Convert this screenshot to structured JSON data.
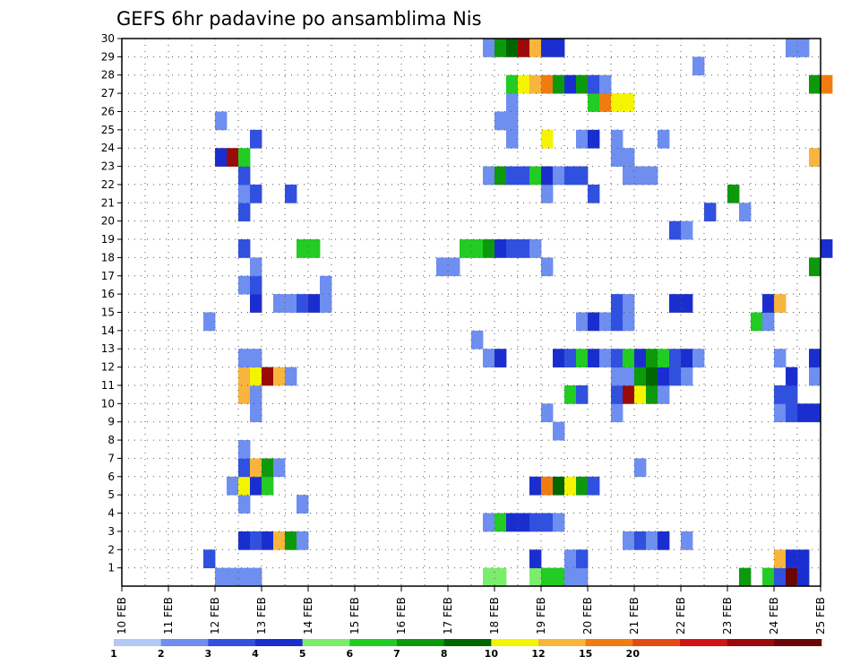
{
  "chart_data": {
    "type": "heatmap",
    "title": "GEFS 6hr padavine po ansamblima Nis",
    "xlabel": "",
    "ylabel": "",
    "x_tick_labels": [
      "10 FEB",
      "11 FEB",
      "12 FEB",
      "13 FEB",
      "14 FEB",
      "15 FEB",
      "16 FEB",
      "17 FEB",
      "18 FEB",
      "19 FEB",
      "20 FEB",
      "21 FEB",
      "22 FEB",
      "23 FEB",
      "24 FEB",
      "25 FEB"
    ],
    "y_tick_labels": [
      "1",
      "2",
      "3",
      "4",
      "5",
      "6",
      "7",
      "8",
      "9",
      "10",
      "11",
      "12",
      "13",
      "14",
      "15",
      "16",
      "17",
      "18",
      "19",
      "20",
      "21",
      "22",
      "23",
      "24",
      "25",
      "26",
      "27",
      "28",
      "29",
      "30"
    ],
    "x_range_days": [
      10,
      25
    ],
    "y_range_members": [
      0,
      30
    ],
    "time_step_hours": 6,
    "grid": true,
    "colorbar": {
      "labels": [
        "1",
        "2",
        "3",
        "4",
        "5",
        "6",
        "7",
        "8",
        "10",
        "12",
        "15",
        "20"
      ],
      "colors": [
        "#b4c8f4",
        "#6e8ef0",
        "#3050e0",
        "#1a2ed0",
        "#7aee6c",
        "#22cc22",
        "#0c9a0c",
        "#006600",
        "#f4f400",
        "#f8b43c",
        "#f07c10",
        "#e64a14",
        "#d01414",
        "#9a0a0a",
        "#6a0606"
      ]
    },
    "cells": [
      {
        "m": 0,
        "t": "12 00",
        "c": 1
      },
      {
        "m": 0,
        "t": "12 06",
        "c": 1
      },
      {
        "m": 0,
        "t": "12 12",
        "c": 1
      },
      {
        "m": 0,
        "t": "12 18",
        "c": 1
      },
      {
        "m": 0,
        "t": "17 18",
        "c": 4
      },
      {
        "m": 0,
        "t": "18 00",
        "c": 4
      },
      {
        "m": 0,
        "t": "18 18",
        "c": 4
      },
      {
        "m": 0,
        "t": "19 00",
        "c": 5
      },
      {
        "m": 0,
        "t": "19 06",
        "c": 5
      },
      {
        "m": 0,
        "t": "19 12",
        "c": 1
      },
      {
        "m": 0,
        "t": "19 18",
        "c": 1
      },
      {
        "m": 0,
        "t": "23 06",
        "c": 6
      },
      {
        "m": 0,
        "t": "23 18",
        "c": 5
      },
      {
        "m": 0,
        "t": "24 00",
        "c": 2
      },
      {
        "m": 0,
        "t": "24 06",
        "c": 14
      },
      {
        "m": 0,
        "t": "24 12",
        "c": 3
      },
      {
        "m": 1,
        "t": "11 18",
        "c": 2
      },
      {
        "m": 1,
        "t": "18 18",
        "c": 3
      },
      {
        "m": 1,
        "t": "19 12",
        "c": 1
      },
      {
        "m": 1,
        "t": "19 18",
        "c": 2
      },
      {
        "m": 1,
        "t": "24 00",
        "c": 9
      },
      {
        "m": 1,
        "t": "24 06",
        "c": 3
      },
      {
        "m": 1,
        "t": "24 12",
        "c": 3
      },
      {
        "m": 2,
        "t": "12 12",
        "c": 3
      },
      {
        "m": 2,
        "t": "12 18",
        "c": 2
      },
      {
        "m": 2,
        "t": "13 00",
        "c": 3
      },
      {
        "m": 2,
        "t": "13 06",
        "c": 9
      },
      {
        "m": 2,
        "t": "13 12",
        "c": 6
      },
      {
        "m": 2,
        "t": "13 18",
        "c": 1
      },
      {
        "m": 2,
        "t": "20 18",
        "c": 1
      },
      {
        "m": 2,
        "t": "21 00",
        "c": 2
      },
      {
        "m": 2,
        "t": "21 06",
        "c": 1
      },
      {
        "m": 2,
        "t": "21 12",
        "c": 3
      },
      {
        "m": 2,
        "t": "22 00",
        "c": 1
      },
      {
        "m": 3,
        "t": "17 18",
        "c": 1
      },
      {
        "m": 3,
        "t": "18 00",
        "c": 5
      },
      {
        "m": 3,
        "t": "18 06",
        "c": 3
      },
      {
        "m": 3,
        "t": "18 12",
        "c": 3
      },
      {
        "m": 3,
        "t": "18 18",
        "c": 2
      },
      {
        "m": 3,
        "t": "19 00",
        "c": 2
      },
      {
        "m": 3,
        "t": "19 06",
        "c": 1
      },
      {
        "m": 4,
        "t": "12 12",
        "c": 1
      },
      {
        "m": 4,
        "t": "13 18",
        "c": 1
      },
      {
        "m": 5,
        "t": "12 06",
        "c": 1
      },
      {
        "m": 5,
        "t": "12 12",
        "c": 8
      },
      {
        "m": 5,
        "t": "12 18",
        "c": 3
      },
      {
        "m": 5,
        "t": "13 00",
        "c": 5
      },
      {
        "m": 5,
        "t": "18 18",
        "c": 3
      },
      {
        "m": 5,
        "t": "19 00",
        "c": 10
      },
      {
        "m": 5,
        "t": "19 06",
        "c": 7
      },
      {
        "m": 5,
        "t": "19 12",
        "c": 8
      },
      {
        "m": 5,
        "t": "19 18",
        "c": 6
      },
      {
        "m": 5,
        "t": "20 00",
        "c": 2
      },
      {
        "m": 6,
        "t": "12 12",
        "c": 2
      },
      {
        "m": 6,
        "t": "12 18",
        "c": 9
      },
      {
        "m": 6,
        "t": "13 00",
        "c": 6
      },
      {
        "m": 6,
        "t": "13 06",
        "c": 1
      },
      {
        "m": 6,
        "t": "21 00",
        "c": 1
      },
      {
        "m": 7,
        "t": "12 12",
        "c": 1
      },
      {
        "m": 8,
        "t": "19 06",
        "c": 1
      },
      {
        "m": 9,
        "t": "12 18",
        "c": 1
      },
      {
        "m": 9,
        "t": "19 00",
        "c": 1
      },
      {
        "m": 9,
        "t": "20 12",
        "c": 1
      },
      {
        "m": 9,
        "t": "24 00",
        "c": 1
      },
      {
        "m": 9,
        "t": "24 06",
        "c": 2
      },
      {
        "m": 9,
        "t": "24 12",
        "c": 3
      },
      {
        "m": 9,
        "t": "24 18",
        "c": 3
      },
      {
        "m": 10,
        "t": "12 12",
        "c": 9
      },
      {
        "m": 10,
        "t": "12 18",
        "c": 1
      },
      {
        "m": 10,
        "t": "19 12",
        "c": 5
      },
      {
        "m": 10,
        "t": "19 18",
        "c": 2
      },
      {
        "m": 10,
        "t": "20 12",
        "c": 2
      },
      {
        "m": 10,
        "t": "20 18",
        "c": 13
      },
      {
        "m": 10,
        "t": "21 00",
        "c": 8
      },
      {
        "m": 10,
        "t": "21 06",
        "c": 6
      },
      {
        "m": 10,
        "t": "21 12",
        "c": 1
      },
      {
        "m": 10,
        "t": "24 00",
        "c": 2
      },
      {
        "m": 10,
        "t": "24 06",
        "c": 2
      },
      {
        "m": 11,
        "t": "12 12",
        "c": 9
      },
      {
        "m": 11,
        "t": "12 18",
        "c": 8
      },
      {
        "m": 11,
        "t": "13 00",
        "c": 13
      },
      {
        "m": 11,
        "t": "13 06",
        "c": 9
      },
      {
        "m": 11,
        "t": "13 12",
        "c": 1
      },
      {
        "m": 11,
        "t": "20 12",
        "c": 1
      },
      {
        "m": 11,
        "t": "20 18",
        "c": 1
      },
      {
        "m": 11,
        "t": "21 00",
        "c": 6
      },
      {
        "m": 11,
        "t": "21 06",
        "c": 7
      },
      {
        "m": 11,
        "t": "21 12",
        "c": 3
      },
      {
        "m": 11,
        "t": "21 18",
        "c": 2
      },
      {
        "m": 11,
        "t": "22 00",
        "c": 1
      },
      {
        "m": 11,
        "t": "24 06",
        "c": 3
      },
      {
        "m": 11,
        "t": "24 18",
        "c": 1
      },
      {
        "m": 12,
        "t": "12 12",
        "c": 1
      },
      {
        "m": 12,
        "t": "12 18",
        "c": 1
      },
      {
        "m": 12,
        "t": "17 18",
        "c": 1
      },
      {
        "m": 12,
        "t": "18 00",
        "c": 3
      },
      {
        "m": 12,
        "t": "19 06",
        "c": 3
      },
      {
        "m": 12,
        "t": "19 12",
        "c": 2
      },
      {
        "m": 12,
        "t": "19 18",
        "c": 5
      },
      {
        "m": 12,
        "t": "20 00",
        "c": 3
      },
      {
        "m": 12,
        "t": "20 06",
        "c": 1
      },
      {
        "m": 12,
        "t": "20 12",
        "c": 2
      },
      {
        "m": 12,
        "t": "20 18",
        "c": 5
      },
      {
        "m": 12,
        "t": "21 00",
        "c": 3
      },
      {
        "m": 12,
        "t": "21 06",
        "c": 6
      },
      {
        "m": 12,
        "t": "21 12",
        "c": 5
      },
      {
        "m": 12,
        "t": "21 18",
        "c": 2
      },
      {
        "m": 12,
        "t": "22 00",
        "c": 3
      },
      {
        "m": 12,
        "t": "22 06",
        "c": 1
      },
      {
        "m": 12,
        "t": "24 00",
        "c": 1
      },
      {
        "m": 12,
        "t": "24 18",
        "c": 3
      },
      {
        "m": 13,
        "t": "17 12",
        "c": 1
      },
      {
        "m": 14,
        "t": "11 18",
        "c": 1
      },
      {
        "m": 14,
        "t": "19 18",
        "c": 1
      },
      {
        "m": 14,
        "t": "20 00",
        "c": 3
      },
      {
        "m": 14,
        "t": "20 06",
        "c": 1
      },
      {
        "m": 14,
        "t": "20 12",
        "c": 2
      },
      {
        "m": 14,
        "t": "20 18",
        "c": 1
      },
      {
        "m": 14,
        "t": "23 12",
        "c": 5
      },
      {
        "m": 14,
        "t": "23 18",
        "c": 1
      },
      {
        "m": 15,
        "t": "12 18",
        "c": 3
      },
      {
        "m": 15,
        "t": "13 06",
        "c": 1
      },
      {
        "m": 15,
        "t": "13 12",
        "c": 1
      },
      {
        "m": 15,
        "t": "13 18",
        "c": 2
      },
      {
        "m": 15,
        "t": "14 00",
        "c": 3
      },
      {
        "m": 15,
        "t": "14 06",
        "c": 1
      },
      {
        "m": 15,
        "t": "20 12",
        "c": 2
      },
      {
        "m": 15,
        "t": "20 18",
        "c": 1
      },
      {
        "m": 15,
        "t": "21 18",
        "c": 3
      },
      {
        "m": 15,
        "t": "22 00",
        "c": 3
      },
      {
        "m": 15,
        "t": "23 18",
        "c": 3
      },
      {
        "m": 15,
        "t": "24 00",
        "c": 9
      },
      {
        "m": 16,
        "t": "12 12",
        "c": 1
      },
      {
        "m": 16,
        "t": "12 18",
        "c": 2
      },
      {
        "m": 16,
        "t": "14 06",
        "c": 1
      },
      {
        "m": 17,
        "t": "12 18",
        "c": 1
      },
      {
        "m": 17,
        "t": "16 18",
        "c": 1
      },
      {
        "m": 17,
        "t": "17 00",
        "c": 1
      },
      {
        "m": 17,
        "t": "19 00",
        "c": 1
      },
      {
        "m": 17,
        "t": "24 18",
        "c": 6
      },
      {
        "m": 18,
        "t": "12 12",
        "c": 2
      },
      {
        "m": 18,
        "t": "13 18",
        "c": 5
      },
      {
        "m": 18,
        "t": "14 00",
        "c": 5
      },
      {
        "m": 18,
        "t": "17 06",
        "c": 5
      },
      {
        "m": 18,
        "t": "17 12",
        "c": 5
      },
      {
        "m": 18,
        "t": "17 18",
        "c": 6
      },
      {
        "m": 18,
        "t": "18 00",
        "c": 3
      },
      {
        "m": 18,
        "t": "18 06",
        "c": 2
      },
      {
        "m": 18,
        "t": "18 12",
        "c": 2
      },
      {
        "m": 18,
        "t": "18 18",
        "c": 1
      },
      {
        "m": 18,
        "t": "25 00",
        "c": 3
      },
      {
        "m": 19,
        "t": "21 18",
        "c": 2
      },
      {
        "m": 19,
        "t": "22 00",
        "c": 1
      },
      {
        "m": 20,
        "t": "12 12",
        "c": 2
      },
      {
        "m": 20,
        "t": "22 12",
        "c": 2
      },
      {
        "m": 20,
        "t": "23 06",
        "c": 1
      },
      {
        "m": 21,
        "t": "12 12",
        "c": 1
      },
      {
        "m": 21,
        "t": "12 18",
        "c": 2
      },
      {
        "m": 21,
        "t": "13 12",
        "c": 2
      },
      {
        "m": 21,
        "t": "19 00",
        "c": 1
      },
      {
        "m": 21,
        "t": "20 00",
        "c": 2
      },
      {
        "m": 21,
        "t": "23 00",
        "c": 6
      },
      {
        "m": 22,
        "t": "12 12",
        "c": 2
      },
      {
        "m": 22,
        "t": "17 18",
        "c": 1
      },
      {
        "m": 22,
        "t": "18 00",
        "c": 6
      },
      {
        "m": 22,
        "t": "18 06",
        "c": 2
      },
      {
        "m": 22,
        "t": "18 12",
        "c": 2
      },
      {
        "m": 22,
        "t": "18 18",
        "c": 5
      },
      {
        "m": 22,
        "t": "19 00",
        "c": 3
      },
      {
        "m": 22,
        "t": "19 06",
        "c": 1
      },
      {
        "m": 22,
        "t": "19 12",
        "c": 2
      },
      {
        "m": 22,
        "t": "19 18",
        "c": 2
      },
      {
        "m": 22,
        "t": "20 18",
        "c": 1
      },
      {
        "m": 22,
        "t": "21 00",
        "c": 1
      },
      {
        "m": 22,
        "t": "21 06",
        "c": 1
      },
      {
        "m": 23,
        "t": "12 00",
        "c": 3
      },
      {
        "m": 23,
        "t": "12 06",
        "c": 13
      },
      {
        "m": 23,
        "t": "12 12",
        "c": 5
      },
      {
        "m": 23,
        "t": "20 12",
        "c": 1
      },
      {
        "m": 23,
        "t": "20 18",
        "c": 1
      },
      {
        "m": 23,
        "t": "24 18",
        "c": 9
      },
      {
        "m": 24,
        "t": "12 18",
        "c": 2
      },
      {
        "m": 24,
        "t": "18 06",
        "c": 1
      },
      {
        "m": 24,
        "t": "19 00",
        "c": 8
      },
      {
        "m": 24,
        "t": "19 18",
        "c": 1
      },
      {
        "m": 24,
        "t": "20 00",
        "c": 3
      },
      {
        "m": 24,
        "t": "20 12",
        "c": 1
      },
      {
        "m": 24,
        "t": "21 12",
        "c": 1
      },
      {
        "m": 25,
        "t": "12 00",
        "c": 1
      },
      {
        "m": 25,
        "t": "18 00",
        "c": 1
      },
      {
        "m": 25,
        "t": "18 06",
        "c": 1
      },
      {
        "m": 26,
        "t": "18 06",
        "c": 1
      },
      {
        "m": 26,
        "t": "20 00",
        "c": 5
      },
      {
        "m": 26,
        "t": "20 06",
        "c": 10
      },
      {
        "m": 26,
        "t": "20 12",
        "c": 8
      },
      {
        "m": 26,
        "t": "20 18",
        "c": 8
      },
      {
        "m": 27,
        "t": "18 06",
        "c": 5
      },
      {
        "m": 27,
        "t": "18 12",
        "c": 8
      },
      {
        "m": 27,
        "t": "18 18",
        "c": 9
      },
      {
        "m": 27,
        "t": "19 00",
        "c": 10
      },
      {
        "m": 27,
        "t": "19 06",
        "c": 6
      },
      {
        "m": 27,
        "t": "19 12",
        "c": 3
      },
      {
        "m": 27,
        "t": "19 18",
        "c": 6
      },
      {
        "m": 27,
        "t": "20 00",
        "c": 2
      },
      {
        "m": 27,
        "t": "20 06",
        "c": 1
      },
      {
        "m": 27,
        "t": "24 18",
        "c": 6
      },
      {
        "m": 27,
        "t": "25 00",
        "c": 10
      },
      {
        "m": 28,
        "t": "22 06",
        "c": 1
      },
      {
        "m": 29,
        "t": "17 18",
        "c": 1
      },
      {
        "m": 29,
        "t": "18 00",
        "c": 6
      },
      {
        "m": 29,
        "t": "18 06",
        "c": 7
      },
      {
        "m": 29,
        "t": "18 12",
        "c": 13
      },
      {
        "m": 29,
        "t": "18 18",
        "c": 9
      },
      {
        "m": 29,
        "t": "19 00",
        "c": 3
      },
      {
        "m": 29,
        "t": "19 06",
        "c": 3
      },
      {
        "m": 29,
        "t": "24 06",
        "c": 1
      },
      {
        "m": 29,
        "t": "24 12",
        "c": 1
      }
    ]
  }
}
